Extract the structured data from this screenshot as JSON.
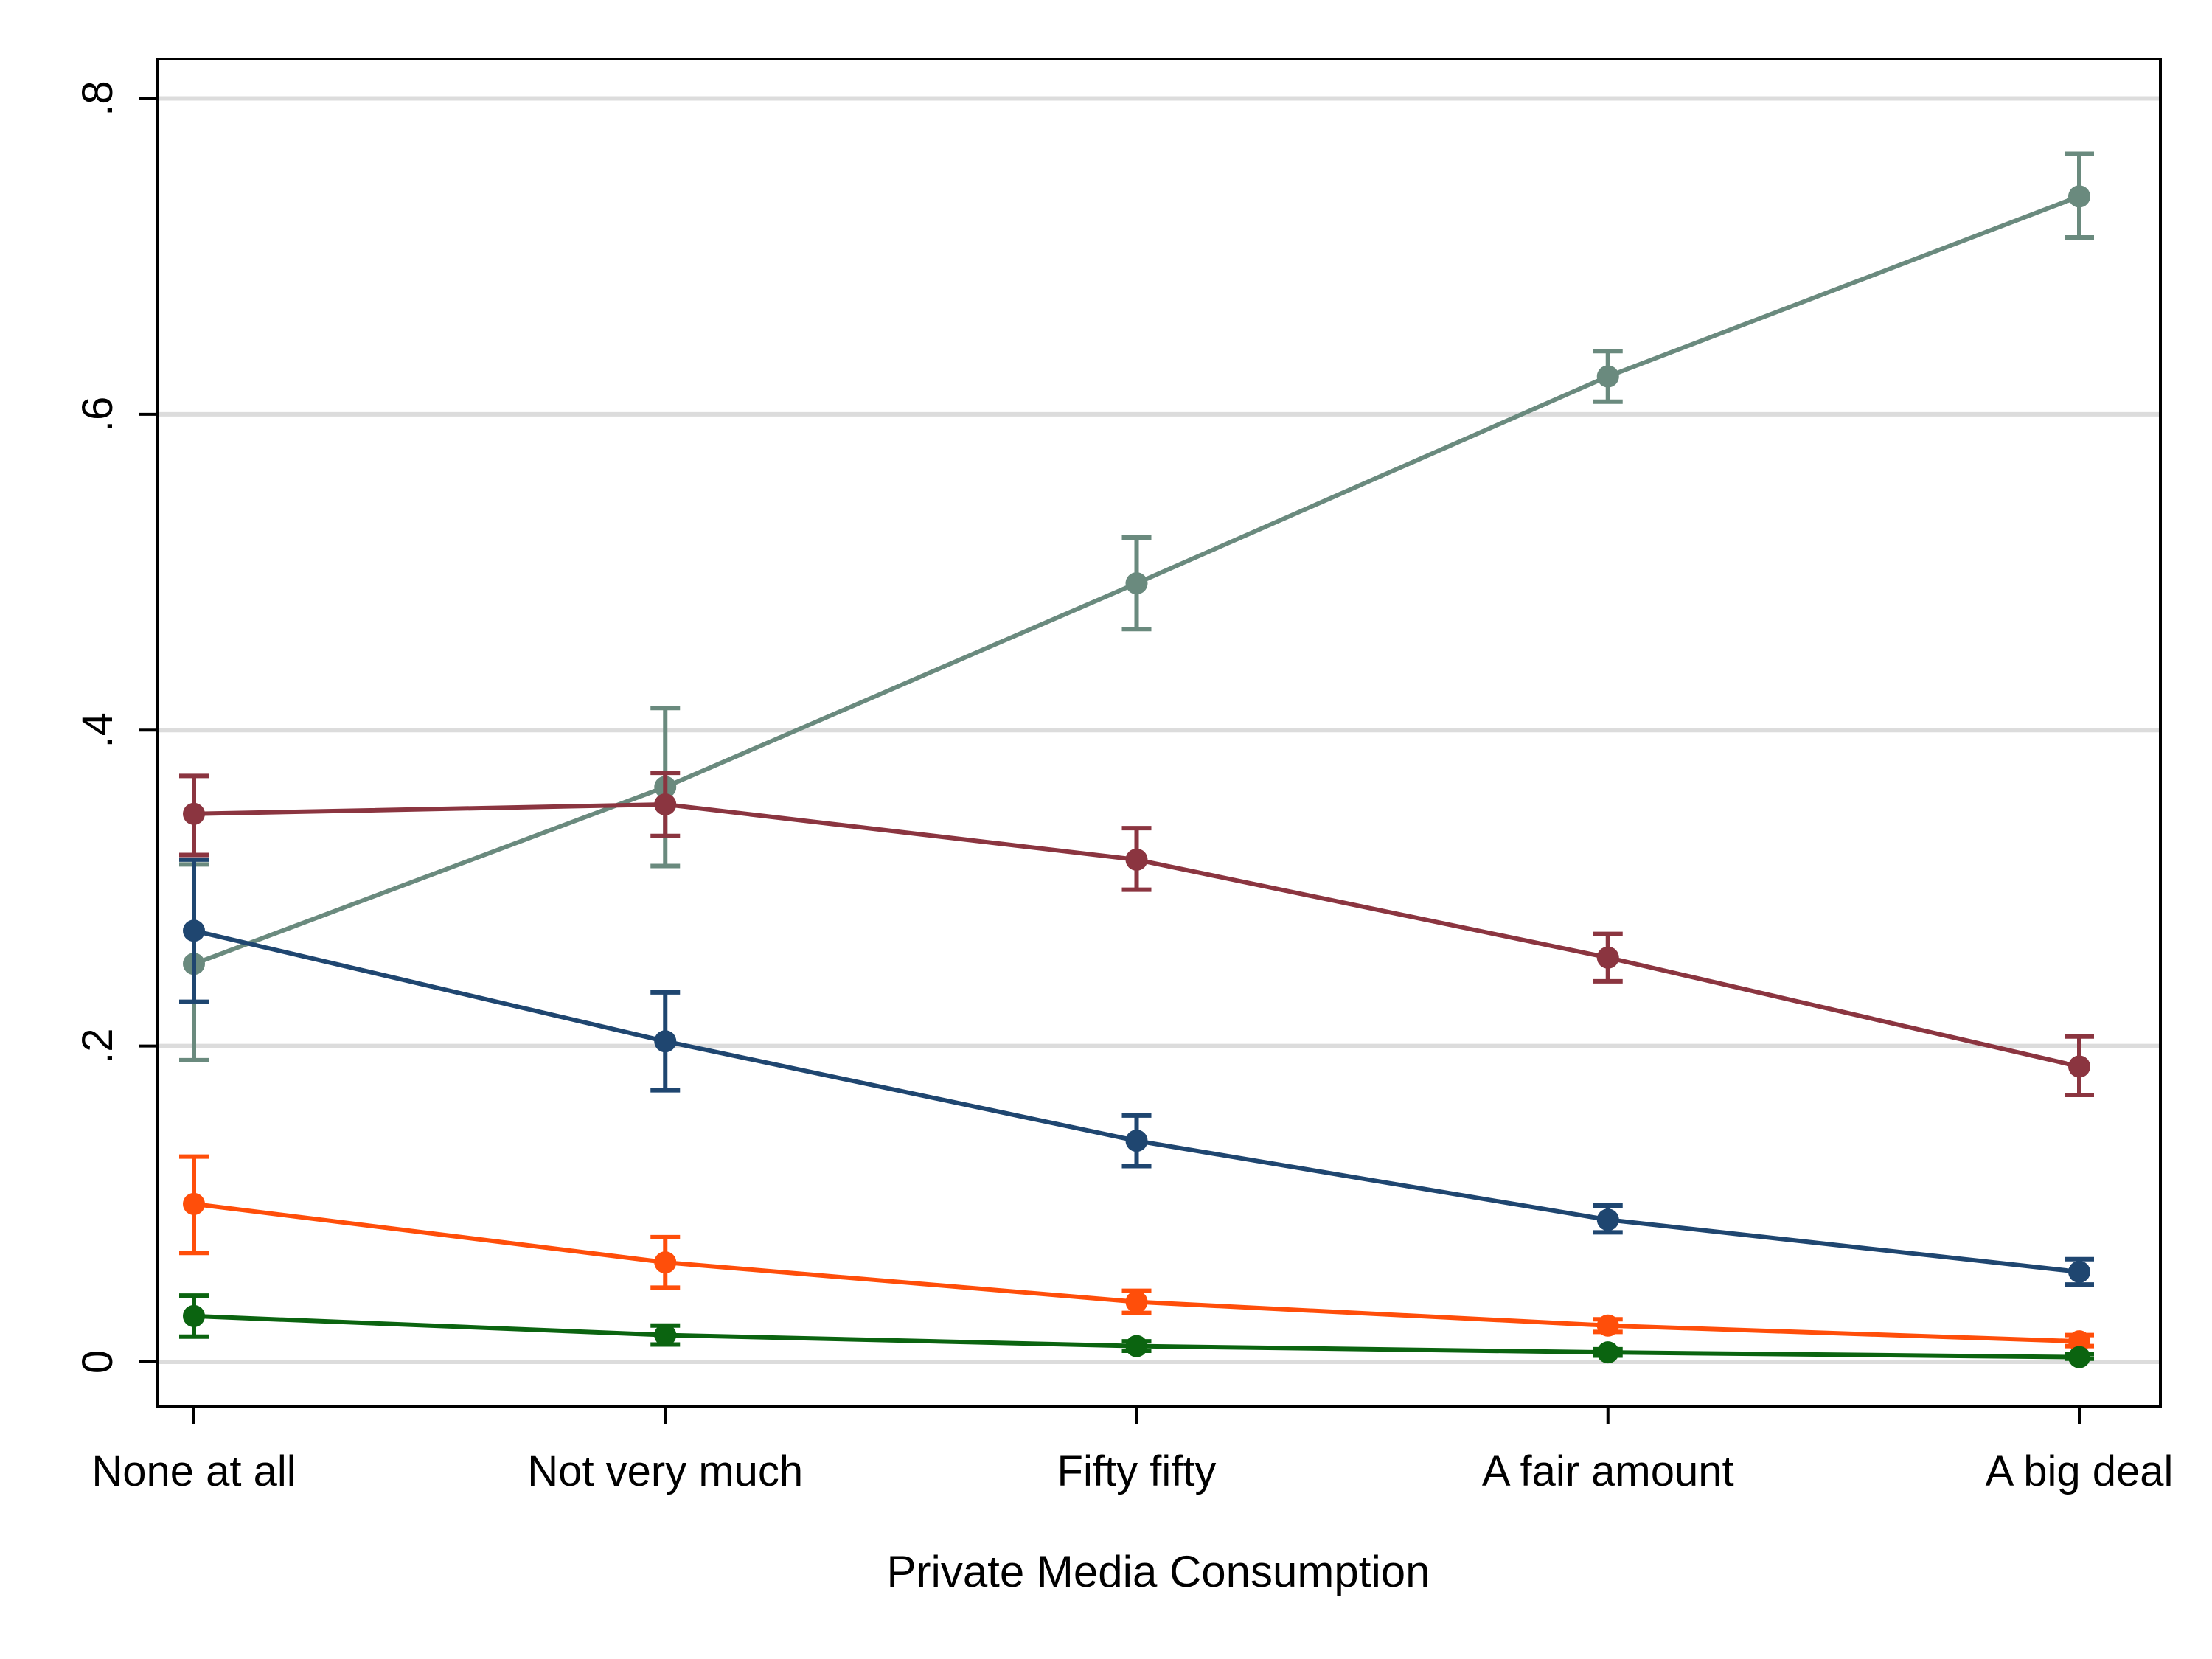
{
  "chart_data": {
    "type": "line",
    "title": "",
    "xlabel": "Private Media Consumption",
    "ylabel": "",
    "categories": [
      "None at all",
      "Not very much",
      "Fifty fifty",
      "A fair amount",
      "A big deal"
    ],
    "ylim": [
      -0.028,
      0.825
    ],
    "yticks": [
      {
        "value": 0,
        "label": "0"
      },
      {
        "value": 0.2,
        "label": ".2"
      },
      {
        "value": 0.4,
        "label": ".4"
      },
      {
        "value": 0.6,
        "label": ".6"
      },
      {
        "value": 0.8,
        "label": ".8"
      }
    ],
    "grid": true,
    "legend": "none",
    "series": [
      {
        "color": "#6a8a7e",
        "values": [
          0.252,
          0.364,
          0.493,
          0.624,
          0.738
        ],
        "ci_low": [
          0.191,
          0.314,
          0.464,
          0.608,
          0.712
        ],
        "ci_high": [
          0.315,
          0.414,
          0.522,
          0.64,
          0.765
        ]
      },
      {
        "color": "#8b3540",
        "values": [
          0.347,
          0.353,
          0.318,
          0.256,
          0.187
        ],
        "ci_low": [
          0.321,
          0.333,
          0.299,
          0.241,
          0.169
        ],
        "ci_high": [
          0.371,
          0.373,
          0.338,
          0.271,
          0.206
        ]
      },
      {
        "color": "#1f4670",
        "values": [
          0.273,
          0.203,
          0.14,
          0.09,
          0.057
        ],
        "ci_low": [
          0.228,
          0.172,
          0.124,
          0.082,
          0.049
        ],
        "ci_high": [
          0.318,
          0.234,
          0.156,
          0.099,
          0.065
        ]
      },
      {
        "color": "#ff4e0a",
        "values": [
          0.1,
          0.063,
          0.038,
          0.023,
          0.013
        ],
        "ci_low": [
          0.069,
          0.047,
          0.031,
          0.019,
          0.01
        ],
        "ci_high": [
          0.13,
          0.079,
          0.045,
          0.027,
          0.017
        ]
      },
      {
        "color": "#0b6410",
        "values": [
          0.029,
          0.017,
          0.01,
          0.006,
          0.003
        ],
        "ci_low": [
          0.016,
          0.011,
          0.007,
          0.004,
          0.002
        ],
        "ci_high": [
          0.042,
          0.023,
          0.013,
          0.008,
          0.005
        ]
      }
    ]
  }
}
